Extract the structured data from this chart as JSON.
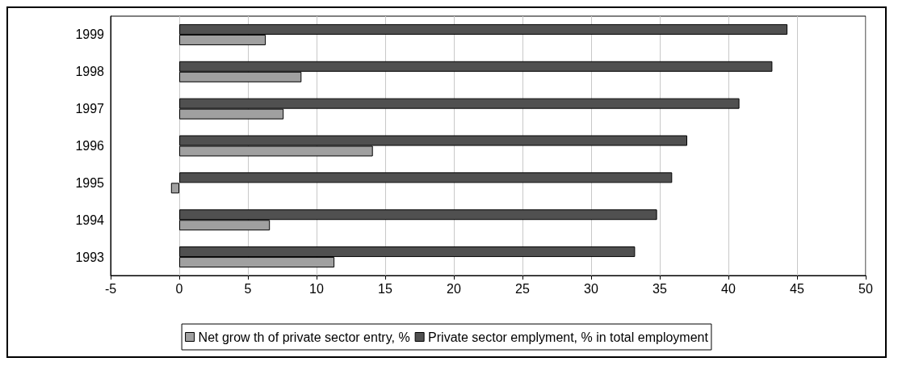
{
  "chart_data": {
    "type": "bar",
    "orientation": "horizontal",
    "categories": [
      "1999",
      "1998",
      "1997",
      "1996",
      "1995",
      "1994",
      "1993"
    ],
    "series": [
      {
        "name": "Net grow th of private sector entry, %",
        "color": "#a0a0a0",
        "values": [
          6.3,
          8.9,
          7.6,
          14.1,
          -0.6,
          6.6,
          11.3
        ]
      },
      {
        "name": "Private sector emplyment, % in total employment",
        "color": "#505050",
        "values": [
          44.3,
          43.2,
          40.8,
          37.0,
          35.9,
          34.8,
          33.2
        ]
      }
    ],
    "xlim": [
      -5,
      50
    ],
    "xticks": [
      -5,
      0,
      5,
      10,
      15,
      20,
      25,
      30,
      35,
      40,
      45,
      50
    ],
    "grid": "x",
    "legend": "bottom"
  }
}
